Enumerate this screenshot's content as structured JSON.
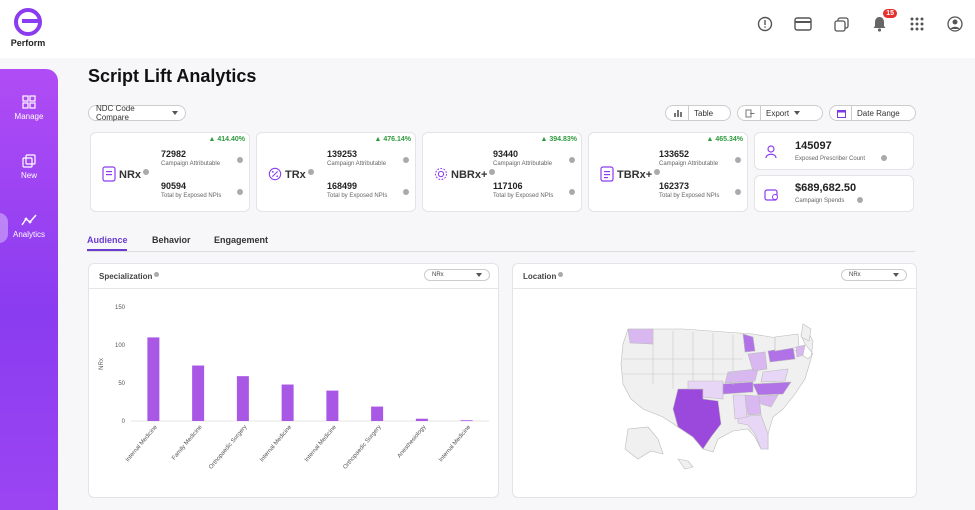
{
  "app": {
    "logo_text": "Perform"
  },
  "topbar": {
    "icons": [
      "alert-icon",
      "card-icon",
      "copy-icon",
      "bell-icon",
      "apps-grid-icon",
      "user-avatar-icon"
    ],
    "notification_count": "15"
  },
  "sidebar": {
    "items": [
      {
        "label": "Manage",
        "icon": "grid-icon"
      },
      {
        "label": "New",
        "icon": "copy-icon"
      },
      {
        "label": "Analytics",
        "icon": "analytics-icon",
        "active": true
      }
    ]
  },
  "page": {
    "title": "Script Lift Analytics"
  },
  "toolbar": {
    "ndc_select": "NDC Code Compare",
    "table_label": "Table",
    "export_label": "Export",
    "date_range_label": "Date Range"
  },
  "metrics": [
    {
      "name": "NRx",
      "pct": "414.40%",
      "top_value": "72982",
      "top_label": "Campaign Attributable",
      "bottom_value": "90594",
      "bottom_label": "Total by Exposed NPIs"
    },
    {
      "name": "TRx",
      "pct": "476.14%",
      "top_value": "139253",
      "top_label": "Campaign Attributable",
      "bottom_value": "168499",
      "bottom_label": "Total by Exposed NPIs"
    },
    {
      "name": "NBRx+",
      "pct": "394.83%",
      "top_value": "93440",
      "top_label": "Campaign Attributable",
      "bottom_value": "117106",
      "bottom_label": "Total by Exposed NPIs"
    },
    {
      "name": "TBRx+",
      "pct": "465.34%",
      "top_value": "133652",
      "top_label": "Campaign Attributable",
      "bottom_value": "162373",
      "bottom_label": "Total by Exposed NPIs"
    }
  ],
  "summary": {
    "prescriber_count": "145097",
    "prescriber_label": "Exposed Prescriber Count",
    "spend": "$689,682.50",
    "spend_label": "Campaign Spends"
  },
  "tabs": [
    {
      "label": "Audience",
      "active": true
    },
    {
      "label": "Behavior"
    },
    {
      "label": "Engagement"
    }
  ],
  "specialization_panel": {
    "title": "Specialization",
    "select": "NRx"
  },
  "location_panel": {
    "title": "Location",
    "select": "NRx"
  },
  "chart_data": {
    "type": "bar",
    "ylabel": "NRx",
    "ylim": [
      0,
      150
    ],
    "yticks": [
      "0",
      "50",
      "100",
      "150"
    ],
    "categories": [
      "Internal Medicine",
      "Family Medicine",
      "Orthopaedic Surgery",
      "Internal Medicine",
      "Internal Medicine",
      "Orthopaedic Surgery",
      "Anesthesiology",
      "Internal Medicine"
    ],
    "values": [
      110,
      73,
      59,
      48,
      40,
      19,
      3,
      1
    ],
    "color": "#a958e6",
    "grid": false
  },
  "colors": {
    "accent": "#8a3cf0",
    "positive": "#2e9a3e",
    "bar": "#a958e6",
    "map_dark": "#9b48dc",
    "map_light": "#d9b8f2",
    "map_base": "#f0f0f0"
  }
}
